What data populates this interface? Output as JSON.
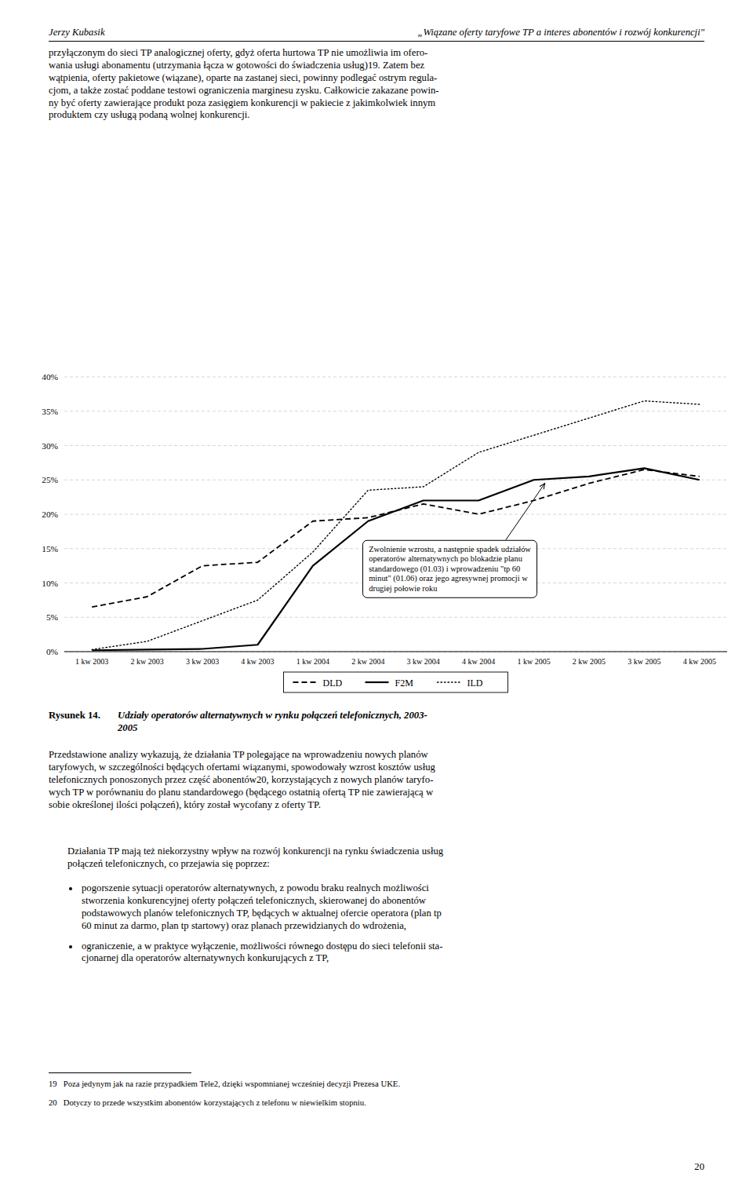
{
  "chart_data": {
    "type": "line",
    "categories": [
      "1 kw 2003",
      "2 kw 2003",
      "3 kw 2003",
      "4 kw 2003",
      "1 kw 2004",
      "2 kw 2004",
      "3 kw 2004",
      "4 kw 2004",
      "1 kw 2005",
      "2 kw 2005",
      "3 kw 2005",
      "4 kw 2005"
    ],
    "series": [
      {
        "name": "DLD",
        "color": "#000000",
        "line_style": "dashed",
        "values": [
          6.5,
          8.0,
          12.5,
          13.0,
          19.0,
          19.5,
          21.5,
          20.0,
          22.0,
          24.5,
          26.5,
          25.5
        ]
      },
      {
        "name": "F2M",
        "color": "#000000",
        "line_style": "solid",
        "values": [
          0.2,
          0.3,
          0.4,
          1.0,
          12.5,
          19.0,
          22.0,
          22.0,
          25.0,
          25.5,
          26.7,
          25.0
        ]
      },
      {
        "name": "ILD",
        "color": "#000000",
        "line_style": "dotted",
        "values": [
          0.3,
          1.5,
          4.5,
          7.5,
          14.5,
          23.5,
          24.0,
          29.0,
          31.5,
          34.0,
          36.5,
          36.0
        ]
      }
    ],
    "ylim": [
      0,
      40
    ],
    "yticks": [
      {
        "value": 0,
        "label": "0%"
      },
      {
        "value": 5,
        "label": "5%"
      },
      {
        "value": 10,
        "label": "10%"
      },
      {
        "value": 15,
        "label": "15%"
      },
      {
        "value": 20,
        "label": "20%"
      },
      {
        "value": 25,
        "label": "25%"
      },
      {
        "value": 30,
        "label": "30%"
      },
      {
        "value": 35,
        "label": "35%"
      },
      {
        "value": 40,
        "label": "40%"
      }
    ],
    "grid": true,
    "legend": "bottom",
    "annotation": "Zwolnienie wzrostu, a następnie spadek udziałów\noperatorów alternatywnych po blokadzie planu\nstandardowego (01.03) i wprowadzeniu \"tp 60\nminut\" (01.06) oraz jego agresywnej promocji w\ndrugiej połowie roku"
  },
  "page": {
    "header_left": "Jerzy Kubasik",
    "header_right": "„Wiązane oferty taryfowe TP a interes abonentów i rozwój konkurencji\"",
    "para1": "przyłączonym do sieci TP analogicznej oferty, gdyż oferta hurtowa TP nie umożliwia im ofero-\nwania usługi abonamentu (utrzymania łącza w gotowości do świadczenia usług)19. Zatem bez\nwątpienia, oferty pakietowe (wiązane), oparte na zastanej sieci, powinny podlegać ostrym regula-\ncjom, a także zostać poddane testowi ograniczenia marginesu zysku. Całkowicie zakazane powin-\nny być oferty zawierające produkt poza zasięgiem konkurencji w pakiecie z jakimkolwiek innym\nproduktem czy usługą podaną wolnej konkurencji.",
    "caption_bold": "Rysunek 14.",
    "caption_italic": "Udziały operatorów alternatywnych w rynku połączeń telefonicznych, 2003-\n2005",
    "para2_1": "Przedstawione analizy wykazują, że działania TP polegające na wprowadzeniu nowych planów\ntaryfowych, w szczególności będących ofertami wiązanymi, spowodowały wzrost kosztów usług\ntelefonicznych ponoszonych przez część abonentów20, korzystających z nowych planów taryfo-\nwych TP w porównaniu do planu standardowego (będącego ostatnią ofertą TP nie zawierającą w\nsobie określonej ilości połączeń), który został wycofany z oferty TP.",
    "para2_2": "Działania TP mają też niekorzystny wpływ na rozwój konkurencji na rynku świadczenia usług\npołączeń telefonicznych, co przejawia się poprzez:",
    "bullet1": "pogorszenie sytuacji operatorów alternatywnych, z powodu braku realnych możliwości\nstworzenia konkurencyjnej oferty połączeń telefonicznych, skierowanej do abonentów\npodstawowych planów telefonicznych TP, będących w aktualnej ofercie operatora (plan tp\n60 minut za darmo, plan tp startowy) oraz planach przewidzianych do wdrożenia,",
    "bullet2": "ograniczenie, a w praktyce wyłączenie, możliwości równego dostępu do sieci telefonii sta-\ncjonarnej dla operatorów alternatywnych konkurujących z TP,",
    "footnote19": "19   Poza jedynym jak na razie przypadkiem Tele2, dzięki wspomnianej wcześniej decyzji Prezesa UKE.",
    "footnote20": "20   Dotyczy to przede wszystkim abonentów korzystających z telefonu w niewielkim stopniu.",
    "page_number": "20"
  }
}
